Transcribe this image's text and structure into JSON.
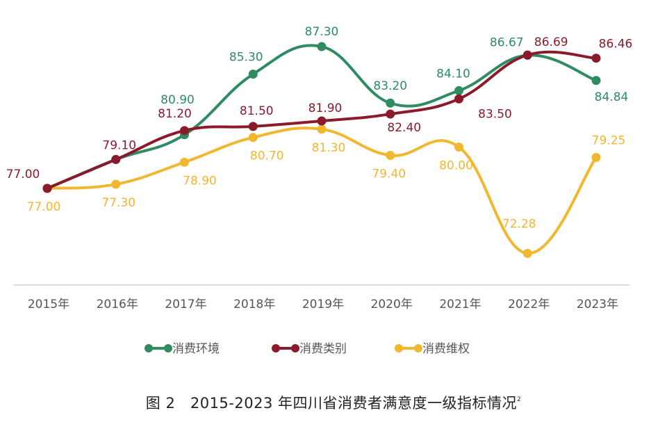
{
  "chart_data": {
    "type": "line",
    "smooth": true,
    "title": "",
    "xlabel": "",
    "ylabel": "",
    "categories": [
      "2015年",
      "2016年",
      "2017年",
      "2018年",
      "2019年",
      "2020年",
      "2021年",
      "2022年",
      "2023年"
    ],
    "ylim": [
      70,
      88
    ],
    "grid": false,
    "legend_position": "bottom",
    "series": [
      {
        "name": "消费环境",
        "color": "#2e8b62",
        "values": [
          77.0,
          79.1,
          80.9,
          85.3,
          87.3,
          83.2,
          84.1,
          86.67,
          84.84
        ],
        "labels": [
          null,
          null,
          "80.90",
          "85.30",
          "87.30",
          "83.20",
          "84.10",
          "86.67",
          "84.84"
        ]
      },
      {
        "name": "消费类别",
        "color": "#8b1a2b",
        "values": [
          77.0,
          79.1,
          81.2,
          81.5,
          81.9,
          82.4,
          83.5,
          86.69,
          86.46
        ],
        "labels": [
          "77.00",
          "79.10",
          "81.20",
          "81.50",
          "81.90",
          "82.40",
          "83.50",
          "86.69",
          "86.46"
        ]
      },
      {
        "name": "消费维权",
        "color": "#f0b72f",
        "values": [
          77.0,
          77.3,
          78.9,
          80.7,
          81.3,
          79.4,
          80.0,
          72.28,
          79.25
        ],
        "labels": [
          "77.00",
          "77.30",
          "78.90",
          "80.70",
          "81.30",
          "79.40",
          "80.00",
          "72.28",
          "79.25"
        ]
      }
    ]
  },
  "caption": {
    "prefix": "图 2",
    "text": "2015-2023 年四川省消费者满意度一级指标情况",
    "footnote": "2"
  }
}
